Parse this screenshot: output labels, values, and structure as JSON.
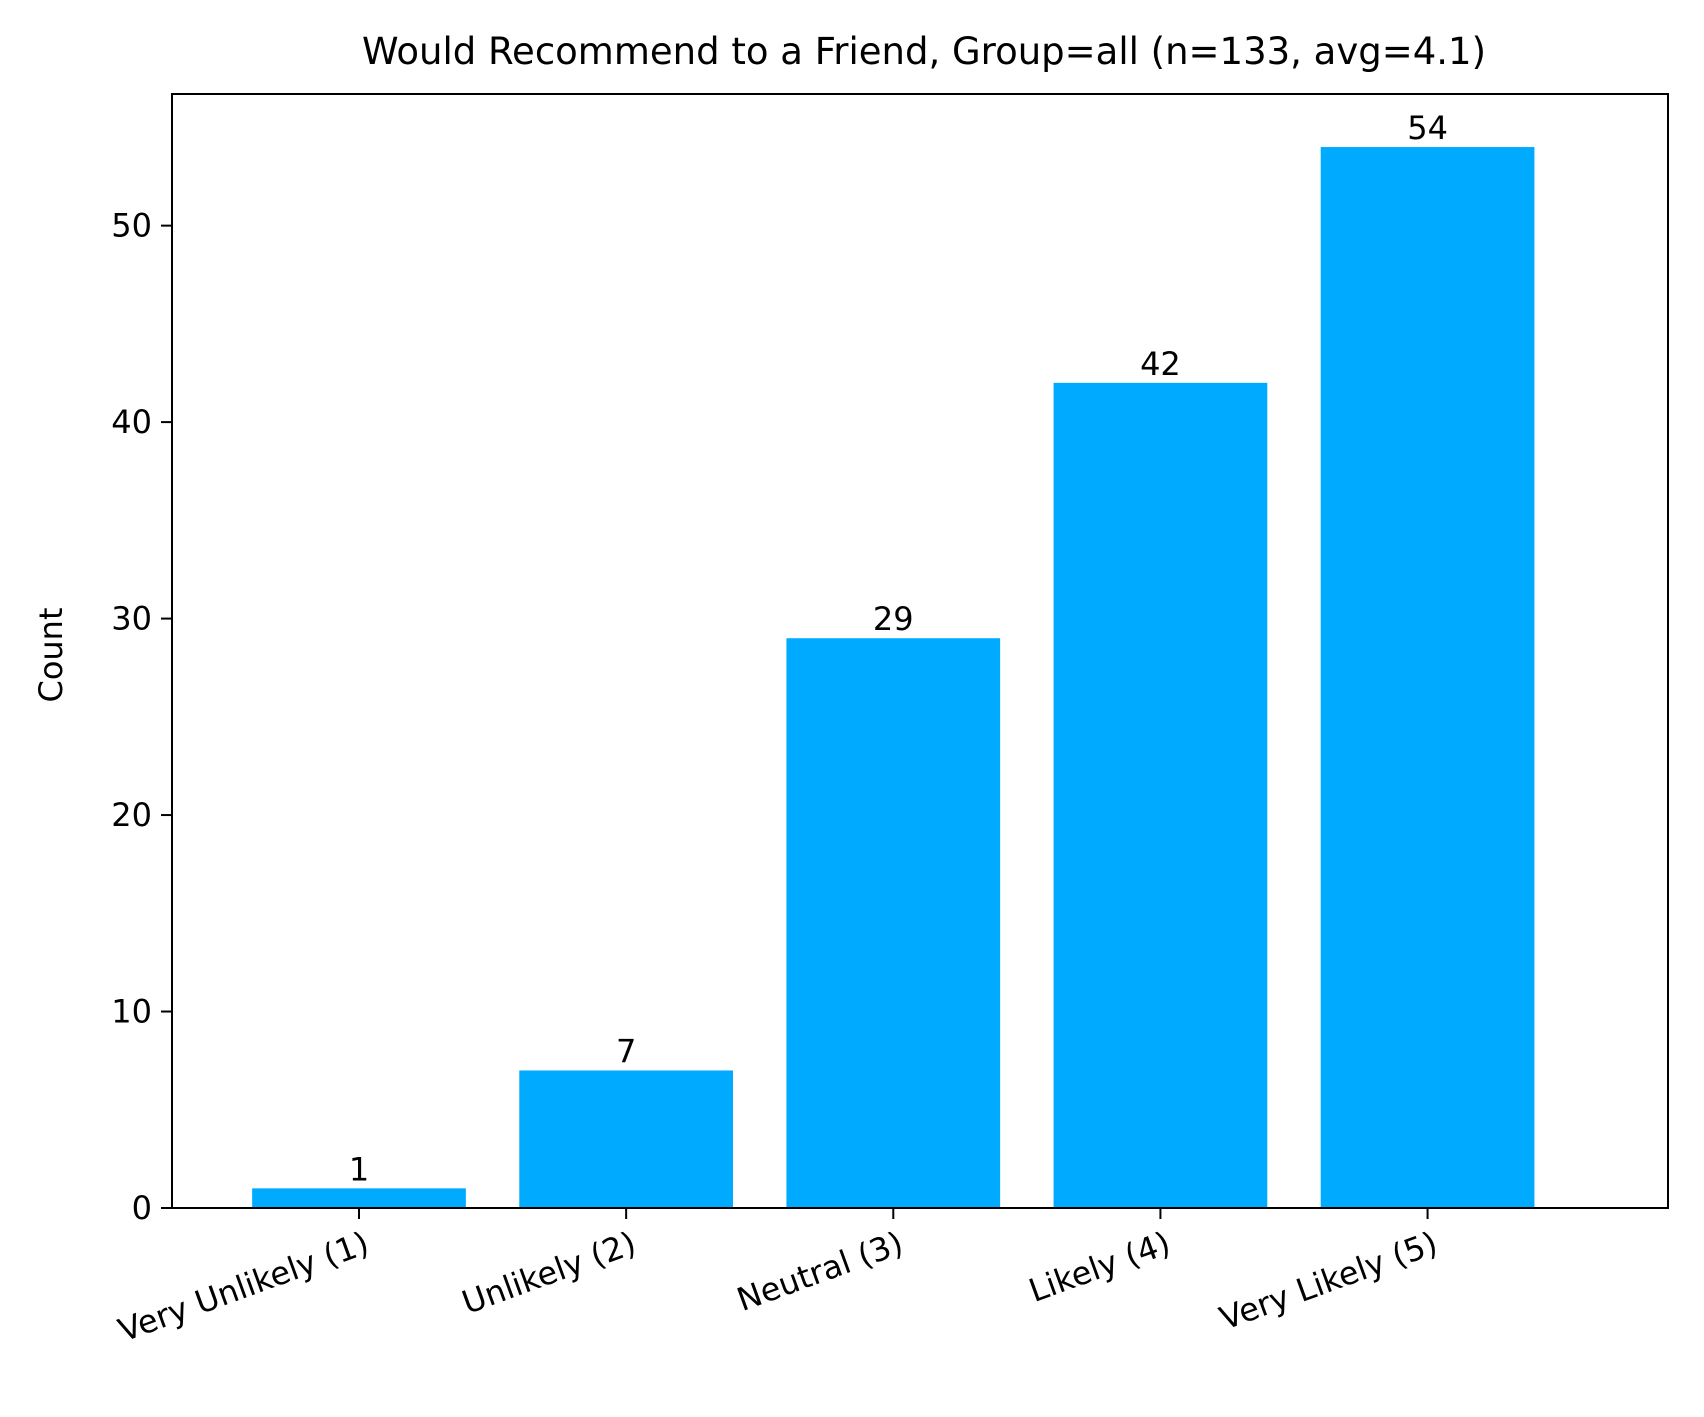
{
  "chart_data": {
    "type": "bar",
    "title": "Would Recommend to a Friend, Group=all (n=133, avg=4.1)",
    "xlabel": "",
    "ylabel": "Count",
    "categories": [
      "Very Unlikely (1)",
      "Unlikely (2)",
      "Neutral (3)",
      "Likely (4)",
      "Very Likely (5)"
    ],
    "values": [
      1,
      7,
      29,
      42,
      54
    ],
    "ylim": [
      0,
      56.7
    ],
    "yticks": [
      0,
      10,
      20,
      30,
      40,
      50
    ],
    "bar_color": "#00aaff",
    "grid": false,
    "legend": "none",
    "x_tick_rotation_deg": 20
  }
}
